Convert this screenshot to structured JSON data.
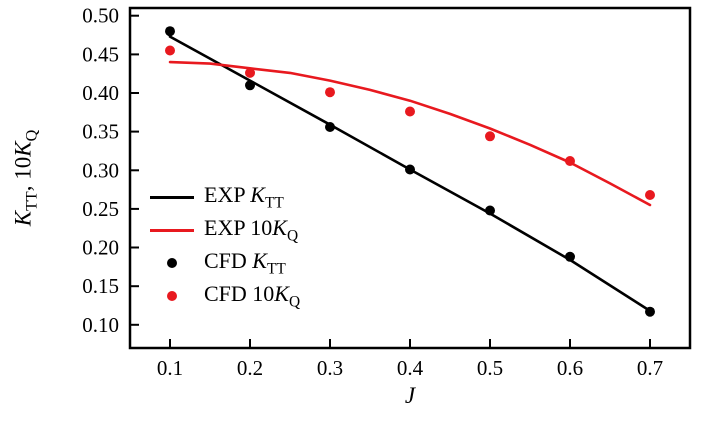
{
  "chart_data": {
    "type": "line+scatter",
    "title": "",
    "xlabel": "J",
    "ylabel": "K_TT, 10K_Q",
    "xlim": [
      0.05,
      0.75
    ],
    "ylim": [
      0.07,
      0.51
    ],
    "grid": false,
    "legend_position": "inside-left-middle",
    "frame_color": "#000000",
    "x_ticks": [
      0.1,
      0.2,
      0.3,
      0.4,
      0.5,
      0.6,
      0.7
    ],
    "x_tick_labels": [
      "0.1",
      "0.2",
      "0.3",
      "0.4",
      "0.5",
      "0.6",
      "0.7"
    ],
    "y_ticks": [
      0.1,
      0.15,
      0.2,
      0.25,
      0.3,
      0.35,
      0.4,
      0.45,
      0.5
    ],
    "y_tick_labels": [
      "0.10",
      "0.15",
      "0.20",
      "0.25",
      "0.30",
      "0.35",
      "0.40",
      "0.45",
      "0.50"
    ],
    "series": [
      {
        "name": "EXP K_TT",
        "type": "line",
        "color": "#000000",
        "x": [
          0.1,
          0.2,
          0.3,
          0.4,
          0.5,
          0.6,
          0.7
        ],
        "y": [
          0.473,
          0.416,
          0.359,
          0.301,
          0.244,
          0.184,
          0.118
        ]
      },
      {
        "name": "EXP 10K_Q",
        "type": "line",
        "color": "#e8191f",
        "x": [
          0.1,
          0.15,
          0.2,
          0.25,
          0.3,
          0.35,
          0.4,
          0.45,
          0.5,
          0.55,
          0.6,
          0.65,
          0.7
        ],
        "y": [
          0.44,
          0.438,
          0.432,
          0.426,
          0.416,
          0.404,
          0.39,
          0.373,
          0.354,
          0.333,
          0.31,
          0.283,
          0.255
        ]
      },
      {
        "name": "CFD K_TT",
        "type": "scatter",
        "color": "#000000",
        "x": [
          0.1,
          0.2,
          0.3,
          0.4,
          0.5,
          0.6,
          0.7
        ],
        "y": [
          0.48,
          0.41,
          0.356,
          0.301,
          0.248,
          0.188,
          0.117
        ]
      },
      {
        "name": "CFD 10K_Q",
        "type": "scatter",
        "color": "#e8191f",
        "x": [
          0.1,
          0.2,
          0.3,
          0.4,
          0.5,
          0.6,
          0.7
        ],
        "y": [
          0.455,
          0.426,
          0.401,
          0.376,
          0.344,
          0.312,
          0.268
        ]
      }
    ]
  },
  "labels": {
    "ylabel": {
      "var1": "K",
      "sub1": "TT",
      "mid": ", 10",
      "var2": "K",
      "sub2": "Q"
    }
  },
  "legend": {
    "items": [
      {
        "prefix": "EXP ",
        "var": "K",
        "sub": "TT",
        "marker": "line",
        "color": "#000000"
      },
      {
        "prefix": "EXP 10",
        "var": "K",
        "sub": "Q",
        "marker": "line",
        "color": "#e8191f"
      },
      {
        "prefix": "CFD ",
        "var": "K",
        "sub": "TT",
        "marker": "dot",
        "color": "#000000"
      },
      {
        "prefix": "CFD 10",
        "var": "K",
        "sub": "Q",
        "marker": "dot",
        "color": "#e8191f"
      }
    ]
  }
}
